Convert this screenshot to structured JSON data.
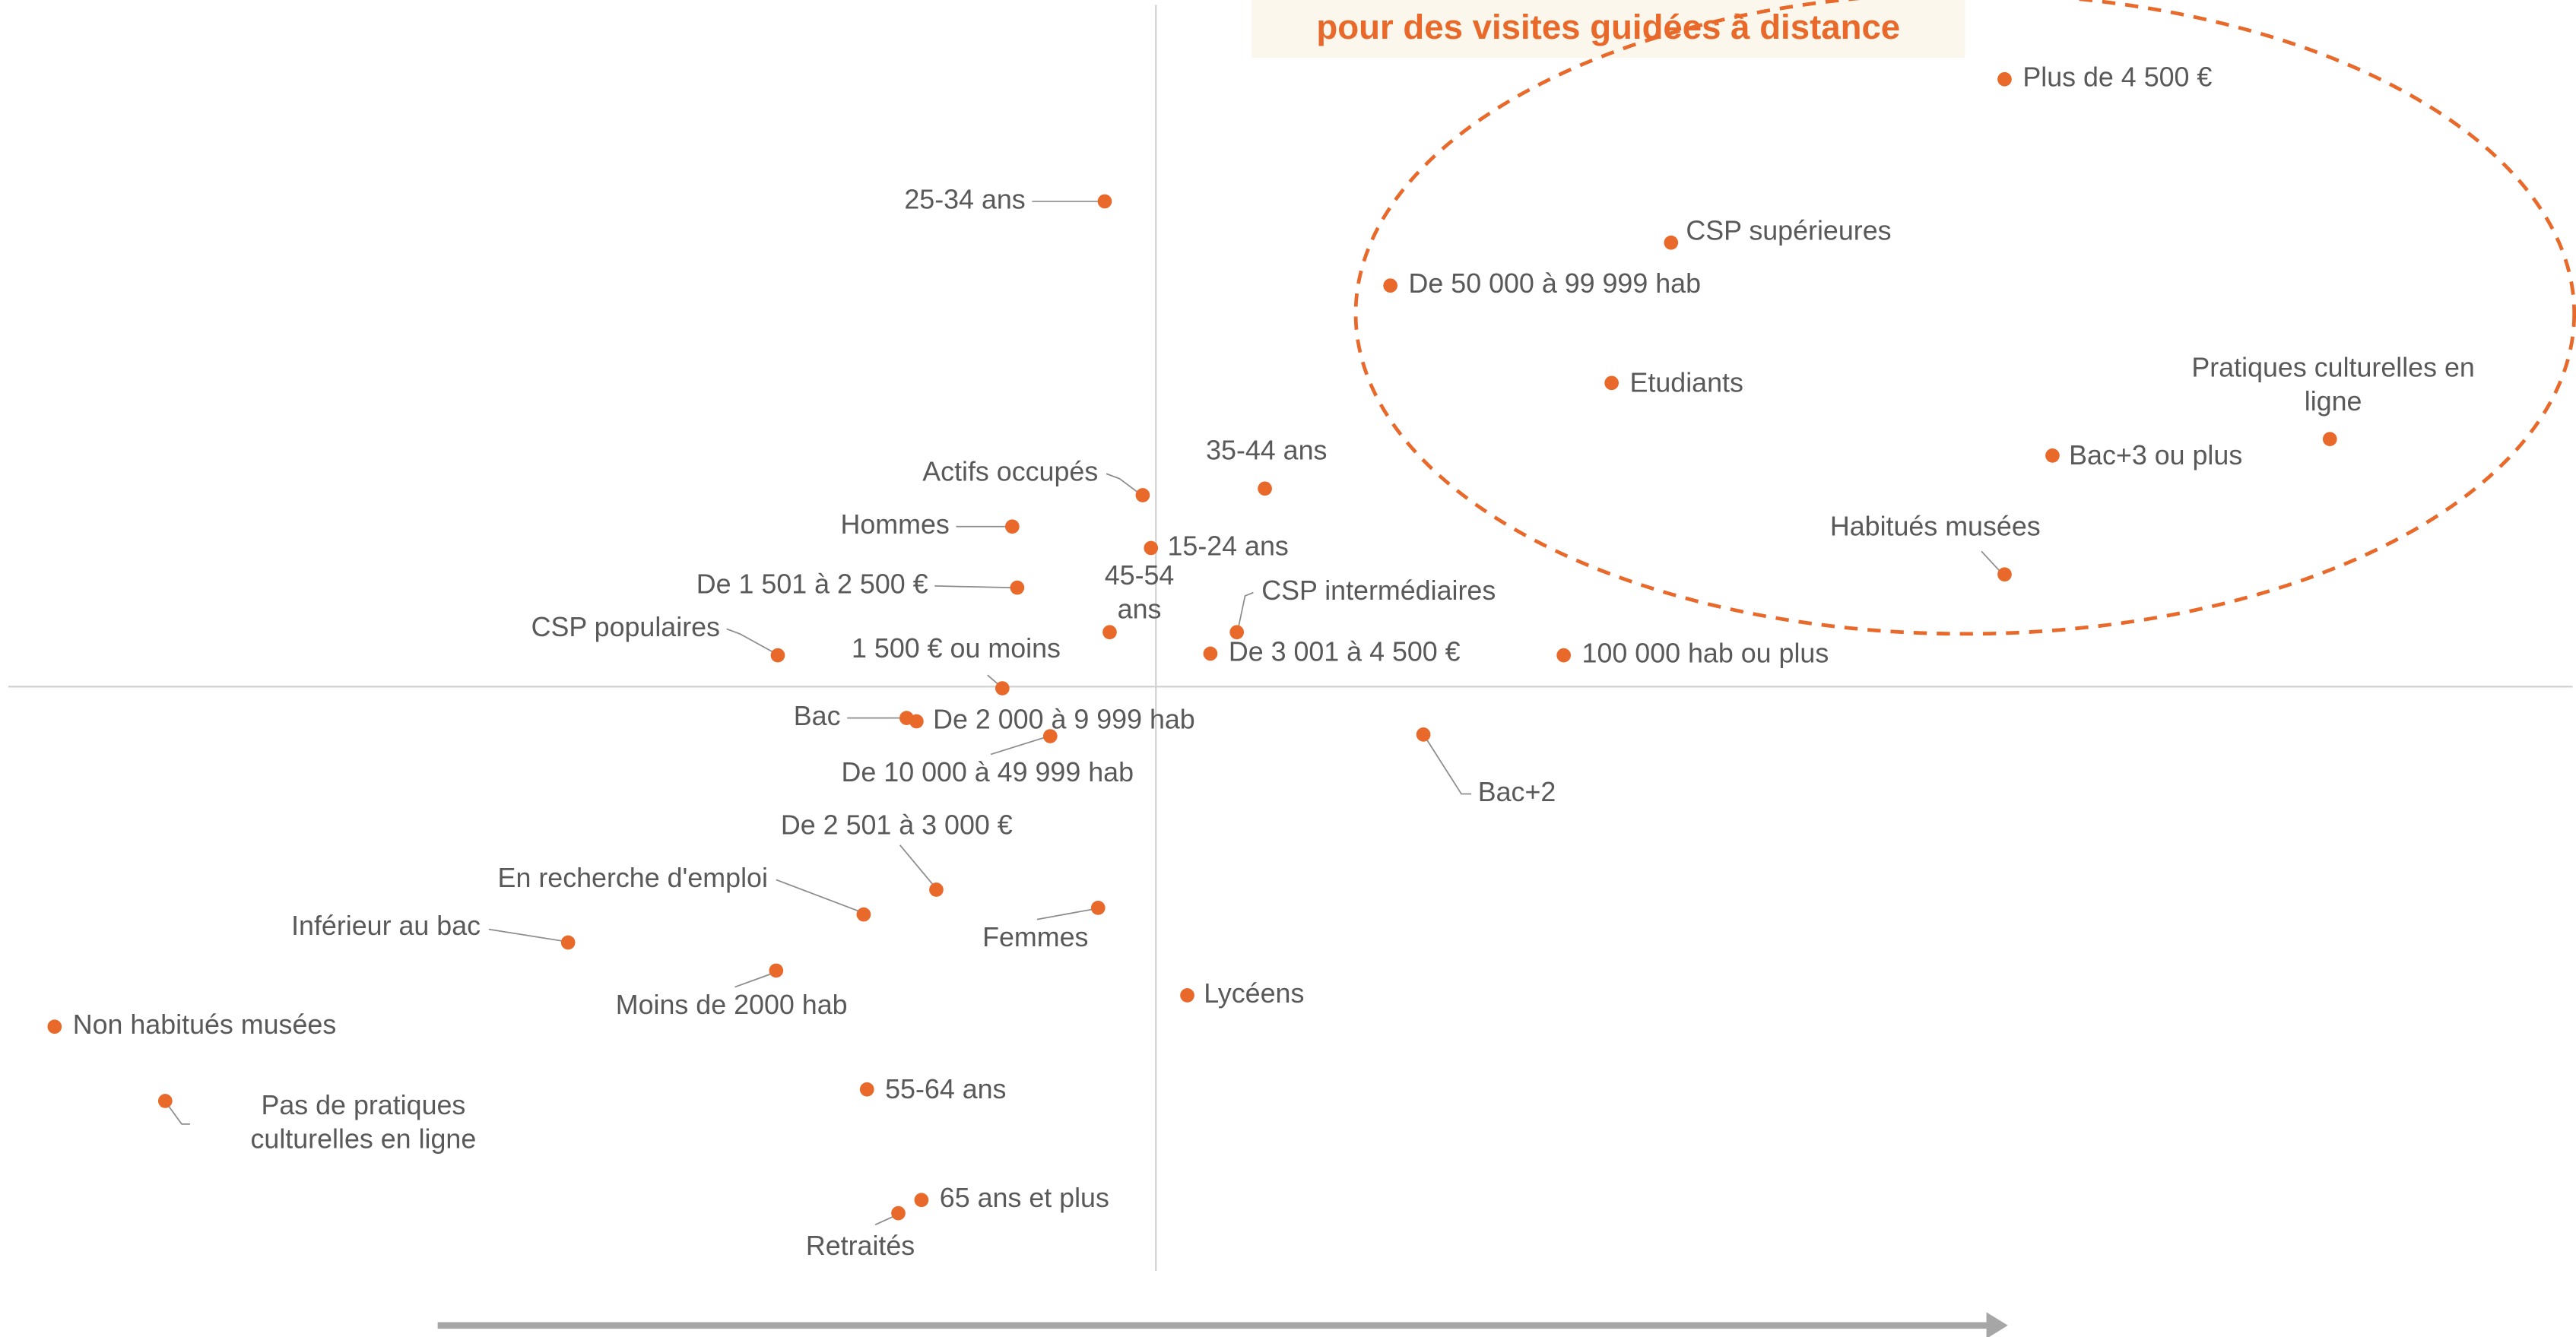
{
  "chart_data": {
    "type": "scatter",
    "title": "pour des visites guidées à distance",
    "color": "#e8692a",
    "labels": [
      "Plus de 4 500 €",
      "25-34 ans",
      "CSP supérieures",
      "De 50 000 à 99 999 hab",
      "Etudiants",
      "Pratiques culturelles en\nligne",
      "Bac+3 ou plus",
      "35-44 ans",
      "Actifs occupés",
      "Hommes",
      "15-24 ans",
      "Habitués musées",
      "De 1 501 à 2 500 €",
      "45-54\nans",
      "CSP intermédiaires",
      "CSP populaires",
      "De 3 001 à 4 500 €",
      "100 000 hab ou plus",
      "1 500 € ou moins",
      "Bac",
      "De 2 000 à 9 999 hab",
      "De 10 000 à 49 999 hab",
      "Bac+2",
      "De 2 501 à 3 000 €",
      "En recherche d'emploi",
      "Femmes",
      "Inférieur au bac",
      "Moins de 2000 hab",
      "Lycéens",
      "Non habitués musées",
      "Pas de pratiques\nculturelles en ligne",
      "55-64 ans",
      "65 ans et plus",
      "Retraités"
    ],
    "x": [
      5.14,
      -0.31,
      3.12,
      1.42,
      2.76,
      7.11,
      5.43,
      0.66,
      -0.08,
      -0.87,
      -0.03,
      5.14,
      -0.84,
      -0.28,
      0.49,
      -2.29,
      0.33,
      2.47,
      -0.93,
      -1.51,
      -1.45,
      -0.64,
      1.62,
      -1.33,
      -1.77,
      -0.35,
      -3.56,
      -2.3,
      0.19,
      -6.67,
      -6,
      -1.75,
      -1.42,
      -1.56
    ],
    "values": [
      3.68,
      2.94,
      2.69,
      2.43,
      1.84,
      1.5,
      1.4,
      1.2,
      1.16,
      0.97,
      0.84,
      0.68,
      0.6,
      0.33,
      0.33,
      0.19,
      0.2,
      0.19,
      -0.01,
      -0.19,
      -0.21,
      -0.3,
      -0.29,
      -1.23,
      -1.38,
      -1.34,
      -1.55,
      -1.72,
      -1.87,
      -2.06,
      -2.51,
      -2.44,
      -3.11,
      -3.19
    ],
    "xlim": [
      -7,
      8.6
    ],
    "ylim": [
      -3.94,
      4.16
    ]
  }
}
